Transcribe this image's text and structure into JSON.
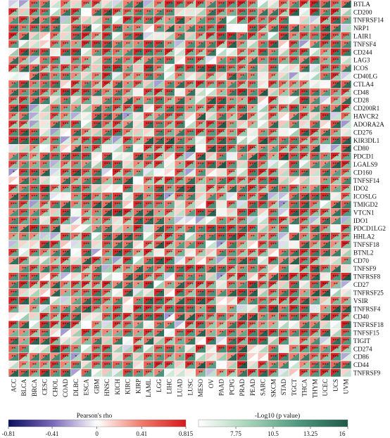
{
  "chart_data": {
    "type": "heatmap",
    "title": "",
    "xlabel": "",
    "ylabel": "",
    "cell_style": "split diagonal: upper-left triangle = Pearson's rho, lower-right triangle = -Log10 (p value); stars mark significance",
    "x": [
      "ACC",
      "BLCA",
      "BRCA",
      "CESC",
      "CHOL",
      "COAD",
      "DLBC",
      "ESCA",
      "GBM",
      "HNSC",
      "KICH",
      "KIRC",
      "KIRP",
      "LAML",
      "LGG",
      "LIHC",
      "LUAD",
      "LUSC",
      "MESO",
      "OV",
      "PAAD",
      "PCPG",
      "PRAD",
      "PEAD",
      "SARC",
      "SKCM",
      "STAD",
      "TGCT",
      "THCA",
      "THYM",
      "UCEC",
      "UCS",
      "UVM"
    ],
    "y": [
      "BTLA",
      "CD200",
      "TNFRSF14",
      "NRP1",
      "LAIR1",
      "TNFSF4",
      "CD244",
      "LAG3",
      "ICOS",
      "CD40LG",
      "CTLA4",
      "CD48",
      "CD28",
      "CD200R1",
      "HAVCR2",
      "ADORA2A",
      "CD276",
      "KIR3DL1",
      "CD80",
      "PDCD1",
      "LGALS9",
      "CD160",
      "TNFSF14",
      "IDO2",
      "ICOSLG",
      "TMIGD2",
      "VTCN1",
      "IDO1",
      "PDCD1LG2",
      "HHLA2",
      "TNFSF18",
      "BTNL2",
      "CD70",
      "TNFSF9",
      "TNFRSF8",
      "CD27",
      "TNFRSF25",
      "VSIR",
      "TNFRSF4",
      "CD40",
      "TNFRSF18",
      "TNFSF15",
      "TIGIT",
      "CD274",
      "CD86",
      "CD44",
      "TNFRSF9"
    ],
    "legends": [
      {
        "name": "Pearson's rho",
        "colors": [
          "#0a0f5e",
          "#7b68b8",
          "#ffffff",
          "#f07b6b",
          "#d7191c"
        ],
        "ticks": [
          "-0.81",
          "-0.41",
          "0",
          "0.41",
          "0.815"
        ],
        "range": [
          -0.81,
          0.815
        ]
      },
      {
        "name": "-Log10 (p value)",
        "colors": [
          "#ffffff",
          "#a8d4b8",
          "#4f9980",
          "#1f5a48"
        ],
        "ticks": [
          "7.75",
          "10.5",
          "13.25",
          "16"
        ],
        "range": [
          5,
          16
        ]
      }
    ]
  }
}
